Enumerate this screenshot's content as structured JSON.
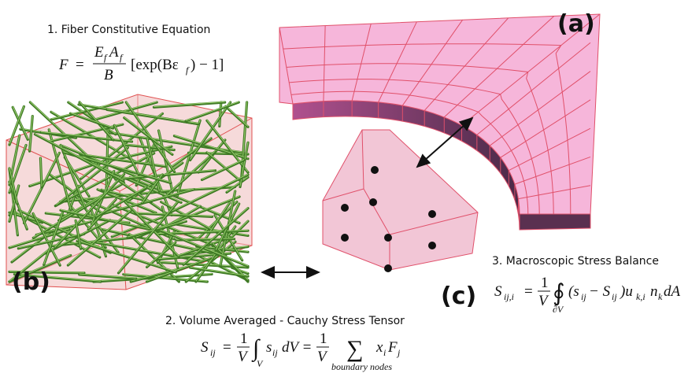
{
  "labels": {
    "a": "(a)",
    "b": "(b)",
    "c": "(c)"
  },
  "eq1": {
    "title": "1. Fiber Constitutive Equation",
    "tokens": [
      "F",
      "=",
      "E",
      "f",
      "A",
      "f",
      "B",
      "[exp(Bε",
      "f",
      ") − 1]"
    ]
  },
  "eq2": {
    "title": "2. Volume Averaged - Cauchy Stress Tensor",
    "tokens": [
      "S",
      "ij",
      "=",
      "1",
      "V",
      "∫",
      "V",
      "s",
      "ij",
      "dV =",
      "1",
      "V",
      "∑",
      "x",
      "i",
      "F",
      "j",
      "boundary nodes"
    ]
  },
  "eq3": {
    "title": "3. Macroscopic Stress Balance",
    "tokens": [
      "S",
      "ij,i",
      "=",
      "1",
      "V",
      "∮",
      "∂V",
      "(s",
      "ij",
      " − S",
      "ij",
      ")u",
      "k,i",
      "n",
      "k",
      "dA"
    ]
  }
}
